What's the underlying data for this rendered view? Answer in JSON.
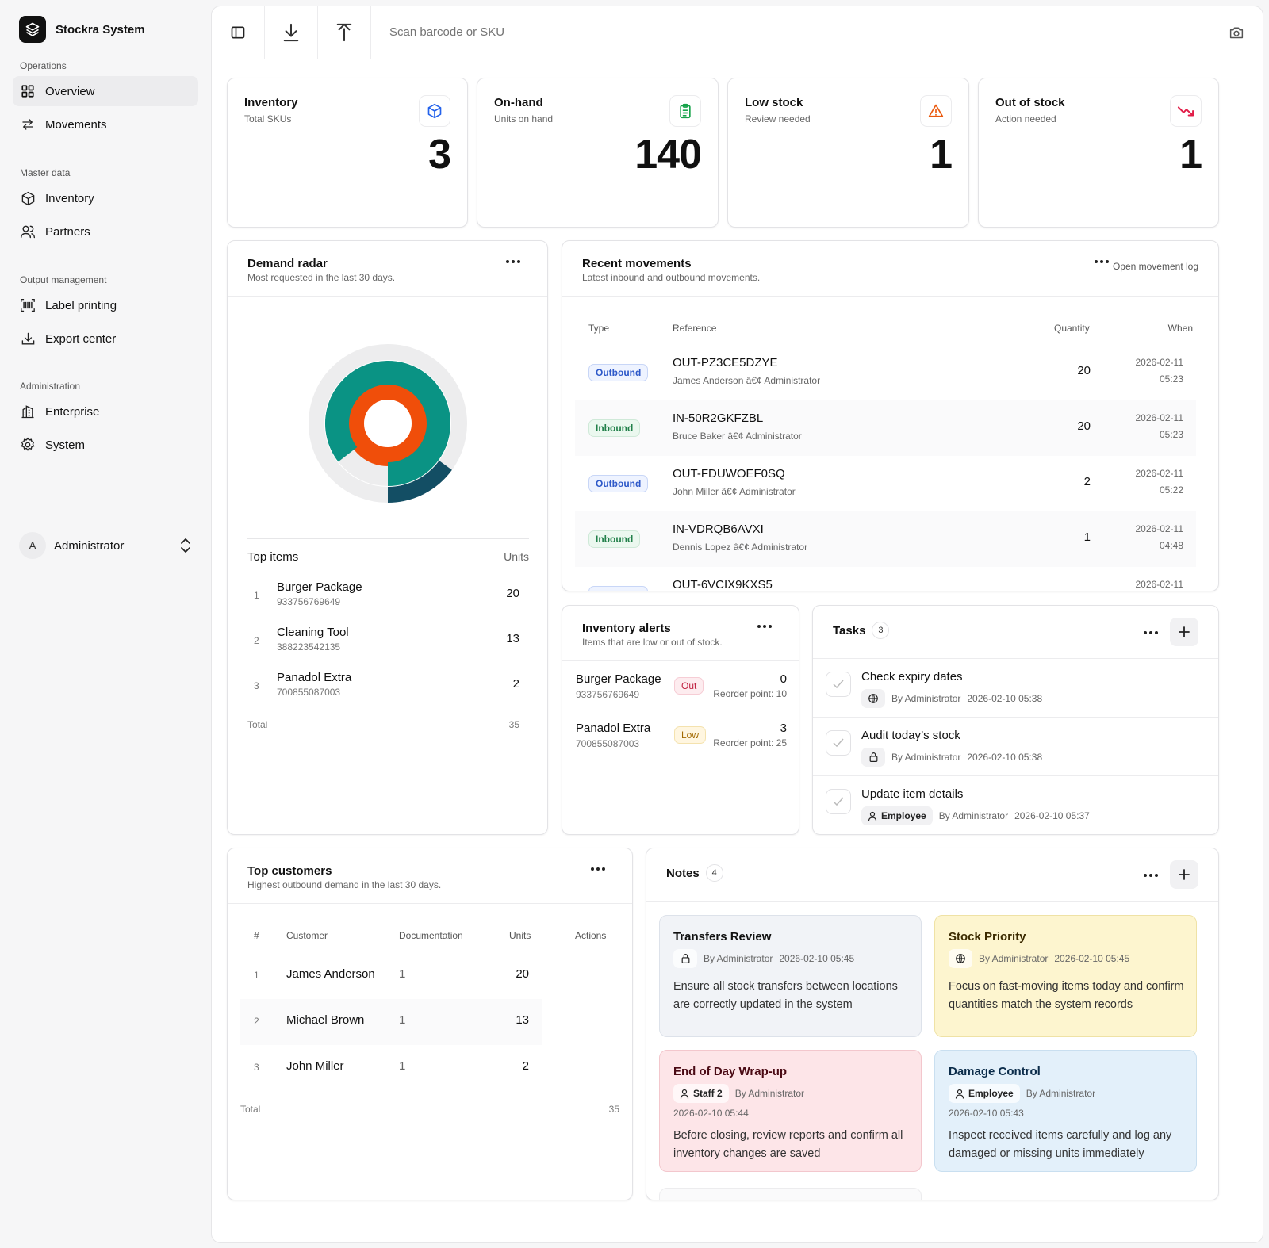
{
  "brand": {
    "name": "Stockra System"
  },
  "sidebar": {
    "groups": [
      {
        "heading": "Operations",
        "items": [
          {
            "label": "Overview",
            "icon": "grid-icon",
            "active": true
          },
          {
            "label": "Movements",
            "icon": "arrows-icon"
          }
        ]
      },
      {
        "heading": "Master data",
        "items": [
          {
            "label": "Inventory",
            "icon": "box-icon"
          },
          {
            "label": "Partners",
            "icon": "users-icon"
          }
        ]
      },
      {
        "heading": "Output management",
        "items": [
          {
            "label": "Label printing",
            "icon": "barcode-icon"
          },
          {
            "label": "Export center",
            "icon": "download-icon"
          }
        ]
      },
      {
        "heading": "Administration",
        "items": [
          {
            "label": "Enterprise",
            "icon": "building-icon"
          },
          {
            "label": "System",
            "icon": "gear-icon"
          }
        ]
      }
    ],
    "user": {
      "initial": "A",
      "name": "Administrator"
    }
  },
  "toolbar": {
    "search_placeholder": "Scan barcode or SKU"
  },
  "kpis": [
    {
      "title": "Inventory",
      "sub": "Total SKUs",
      "value": "3",
      "icon": "cube-icon",
      "color": "#2563eb"
    },
    {
      "title": "On-hand",
      "sub": "Units on hand",
      "value": "140",
      "icon": "clipboard-icon",
      "color": "#16a34a"
    },
    {
      "title": "Low stock",
      "sub": "Review needed",
      "value": "1",
      "icon": "warning-icon",
      "color": "#ea580c"
    },
    {
      "title": "Out of stock",
      "sub": "Action needed",
      "value": "1",
      "icon": "trend-down-icon",
      "color": "#e11d48"
    }
  ],
  "demand": {
    "title": "Demand radar",
    "sub": "Most requested in the last 30 days.",
    "chart_data": {
      "type": "radial-bar",
      "categories": [
        "Burger Package",
        "Cleaning Tool",
        "Panadol Extra"
      ],
      "values": [
        20,
        13,
        2
      ],
      "colors": [
        "#f04e0a",
        "#0a9384",
        "#134e64"
      ]
    },
    "top_head": "Top items",
    "units_head": "Units",
    "items": [
      {
        "rank": "1",
        "name": "Burger Package",
        "sku": "933756769649",
        "units": "20"
      },
      {
        "rank": "2",
        "name": "Cleaning Tool",
        "sku": "388223542135",
        "units": "13"
      },
      {
        "rank": "3",
        "name": "Panadol Extra",
        "sku": "700855087003",
        "units": "2"
      }
    ],
    "total_label": "Total",
    "total_value": "35"
  },
  "movements": {
    "title": "Recent movements",
    "sub": "Latest inbound and outbound movements.",
    "link": "Open movement log",
    "columns": {
      "type": "Type",
      "reference": "Reference",
      "quantity": "Quantity",
      "when": "When"
    },
    "rows": [
      {
        "type": "Outbound",
        "kind": "out",
        "ref": "OUT-PZ3CE5DZYE",
        "who": "James Anderson â€¢ Administrator",
        "qty": "20",
        "date": "2026-02-11",
        "time": "05:23"
      },
      {
        "type": "Inbound",
        "kind": "in",
        "ref": "IN-50R2GKFZBL",
        "who": "Bruce Baker â€¢ Administrator",
        "qty": "20",
        "date": "2026-02-11",
        "time": "05:23"
      },
      {
        "type": "Outbound",
        "kind": "out",
        "ref": "OUT-FDUWOEF0SQ",
        "who": "John Miller â€¢ Administrator",
        "qty": "2",
        "date": "2026-02-11",
        "time": "05:22"
      },
      {
        "type": "Inbound",
        "kind": "in",
        "ref": "IN-VDRQB6AVXI",
        "who": "Dennis Lopez â€¢ Administrator",
        "qty": "1",
        "date": "2026-02-11",
        "time": "04:48"
      },
      {
        "type": "Outbound",
        "kind": "out",
        "ref": "OUT-6VCIX9KXS5",
        "who": "",
        "qty": "",
        "date": "2026-02-11",
        "time": ""
      }
    ]
  },
  "alerts": {
    "title": "Inventory alerts",
    "sub": "Items that are low or out of stock.",
    "rows": [
      {
        "name": "Burger Package",
        "sku": "933756769649",
        "badge": "Out",
        "kind": "out",
        "qty": "0",
        "reorder": "Reorder point: 10"
      },
      {
        "name": "Panadol Extra",
        "sku": "700855087003",
        "badge": "Low",
        "kind": "low",
        "qty": "3",
        "reorder": "Reorder point: 25"
      }
    ]
  },
  "tasks": {
    "title": "Tasks",
    "count": "3",
    "items": [
      {
        "title": "Check expiry dates",
        "vis_icon": "globe-icon",
        "vis_label": "",
        "by": "By Administrator",
        "date": "2026-02-10 05:38"
      },
      {
        "title": "Audit today’s stock",
        "vis_icon": "lock-icon",
        "vis_label": "",
        "by": "By Administrator",
        "date": "2026-02-10 05:38"
      },
      {
        "title": "Update item details",
        "vis_icon": "user-icon",
        "vis_label": "Employee",
        "by": "By Administrator",
        "date": "2026-02-10 05:37"
      }
    ]
  },
  "customers": {
    "title": "Top customers",
    "sub": "Highest outbound demand in the last 30 days.",
    "columns": {
      "rank": "#",
      "customer": "Customer",
      "documentation": "Documentation",
      "units": "Units",
      "actions": "Actions"
    },
    "rows": [
      {
        "rank": "1",
        "name": "James Anderson",
        "docs": "1",
        "units": "20"
      },
      {
        "rank": "2",
        "name": "Michael Brown",
        "docs": "1",
        "units": "13"
      },
      {
        "rank": "3",
        "name": "John Miller",
        "docs": "1",
        "units": "2"
      }
    ],
    "total_label": "Total",
    "total_value": "35"
  },
  "notes": {
    "title": "Notes",
    "count": "4",
    "items": [
      {
        "title": "Transfers Review",
        "vis_icon": "lock-icon",
        "vis_label": "",
        "by": "By Administrator",
        "date": "2026-02-10 05:45",
        "body": "Ensure all stock transfers between locations are correctly updated in the system",
        "bg": "#f1f3f7",
        "border": "#dde2ea",
        "title_color": "#111"
      },
      {
        "title": "Stock Priority",
        "vis_icon": "globe-icon",
        "vis_label": "",
        "by": "By Administrator",
        "date": "2026-02-10 05:45",
        "body": "Focus on fast-moving items today and confirm quantities match the system records",
        "bg": "#fdf5cf",
        "border": "#efe2a5",
        "title_color": "#3b2a00"
      },
      {
        "title": "End of Day Wrap-up",
        "vis_icon": "user-icon",
        "vis_label": "Staff 2",
        "by": "By Administrator",
        "date": "2026-02-10 05:44",
        "body": "Before closing, review reports and confirm all inventory changes are saved",
        "bg": "#fde5e8",
        "border": "#f3c7cd",
        "title_color": "#4a0a14"
      },
      {
        "title": "Damage Control",
        "vis_icon": "user-icon",
        "vis_label": "Employee",
        "by": "By Administrator",
        "date": "2026-02-10 05:43",
        "body": "Inspect received items carefully and log any damaged or missing units immediately",
        "bg": "#e3f0fa",
        "border": "#c9dff0",
        "title_color": "#0b2c4a"
      }
    ]
  }
}
